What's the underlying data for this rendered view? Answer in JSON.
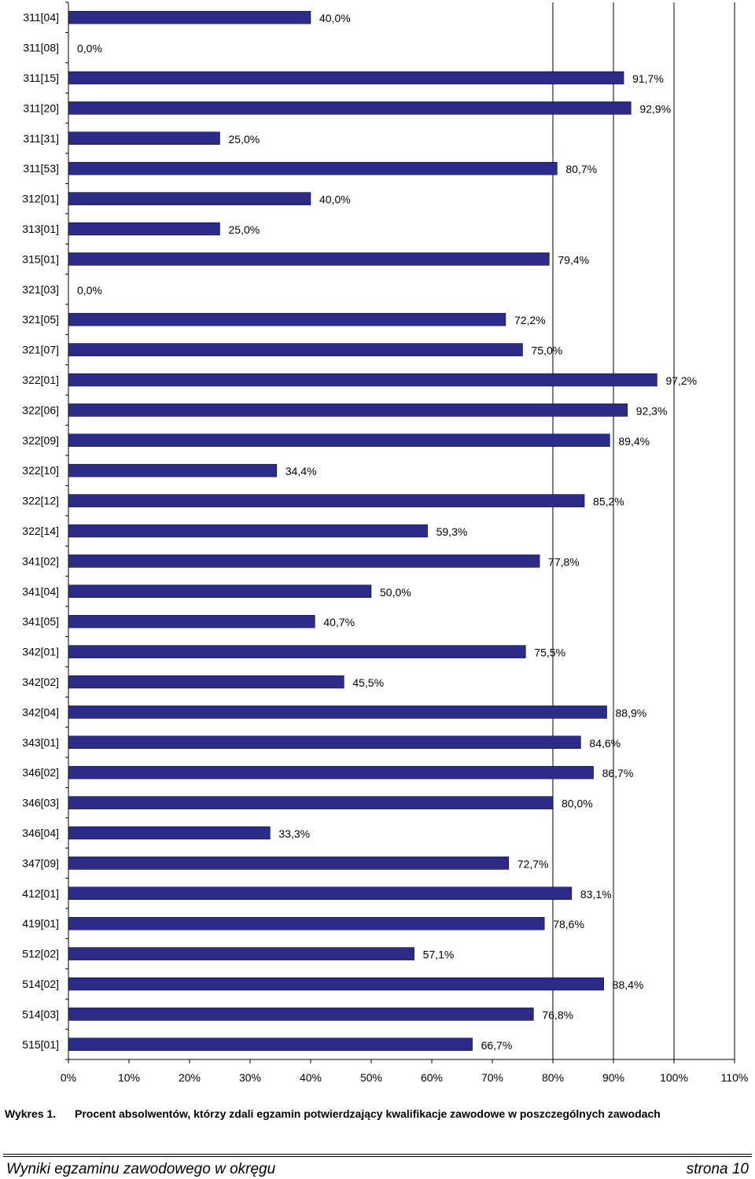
{
  "chart_data": {
    "type": "bar",
    "orientation": "horizontal",
    "categories": [
      "311[04]",
      "311[08]",
      "311[15]",
      "311[20]",
      "311[31]",
      "311[53]",
      "312[01]",
      "313[01]",
      "315[01]",
      "321[03]",
      "321[05]",
      "321[07]",
      "322[01]",
      "322[06]",
      "322[09]",
      "322[10]",
      "322[12]",
      "322[14]",
      "341[02]",
      "341[04]",
      "341[05]",
      "342[01]",
      "342[02]",
      "342[04]",
      "343[01]",
      "346[02]",
      "346[03]",
      "346[04]",
      "347[09]",
      "412[01]",
      "419[01]",
      "512[02]",
      "514[02]",
      "514[03]",
      "515[01]"
    ],
    "values": [
      40.0,
      0.0,
      91.7,
      92.9,
      25.0,
      80.7,
      40.0,
      25.0,
      79.4,
      0.0,
      72.2,
      75.0,
      97.2,
      92.3,
      89.4,
      34.4,
      85.2,
      59.3,
      77.8,
      50.0,
      40.7,
      75.5,
      45.5,
      88.9,
      84.6,
      86.7,
      80.0,
      33.3,
      72.7,
      83.1,
      78.6,
      57.1,
      88.4,
      76.8,
      66.7
    ],
    "value_labels": [
      "40,0%",
      "0,0%",
      "91,7%",
      "92,9%",
      "25,0%",
      "80,7%",
      "40,0%",
      "25,0%",
      "79,4%",
      "0,0%",
      "72,2%",
      "75,0%",
      "97,2%",
      "92,3%",
      "89,4%",
      "34,4%",
      "85,2%",
      "59,3%",
      "77,8%",
      "50,0%",
      "40,7%",
      "75,5%",
      "45,5%",
      "88,9%",
      "84,6%",
      "86,7%",
      "80,0%",
      "33,3%",
      "72,7%",
      "83,1%",
      "78,6%",
      "57,1%",
      "88,4%",
      "76,8%",
      "66,7%"
    ],
    "x_ticks": [
      "0%",
      "10%",
      "20%",
      "30%",
      "40%",
      "50%",
      "60%",
      "70%",
      "80%",
      "90%",
      "100%",
      "110%"
    ],
    "xlim": [
      0,
      110
    ],
    "bar_color": "#2b2b88",
    "grid": "vertical lines at 80, 90, 100, 110"
  },
  "caption": {
    "prefix": "Wykres 1.",
    "text": "Procent absolwentów, którzy zdali egzamin potwierdzający kwalifikacje zawodowe w poszczególnych zawodach"
  },
  "footer": {
    "left": "Wyniki egzaminu zawodowego w okręgu",
    "right": "strona 10"
  }
}
